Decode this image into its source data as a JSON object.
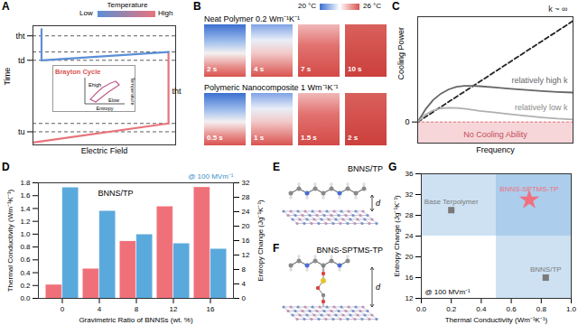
{
  "chart_data": [
    {
      "panel": "A",
      "type": "line",
      "xlabel": "Electric Field",
      "ylabel": "Time",
      "xlim": [
        0,
        1
      ],
      "ylim": [
        0,
        1
      ],
      "yticks": [
        {
          "value": 0.11,
          "label": "tu"
        },
        {
          "value": 0.71,
          "label": "td"
        },
        {
          "value": 0.915,
          "label": "tht"
        }
      ],
      "tick_labels": "y",
      "series": [
        {
          "color": "#e8737b",
          "x": [
            0,
            0.95
          ],
          "values": [
            0.02,
            0.18
          ]
        },
        {
          "color": "#e8737b",
          "x": [
            0.95,
            0.95
          ],
          "values": [
            0.18,
            0.78
          ]
        },
        {
          "color": "#5b8fd6",
          "x": [
            0.95,
            0.06
          ],
          "values": [
            0.78,
            0.71
          ]
        },
        {
          "color": "#5b8fd6",
          "x": [
            0.06,
            0.06
          ],
          "values": [
            0.71,
            0.97
          ]
        }
      ],
      "dashed_lines": [
        0.11,
        0.18,
        0.71,
        0.78,
        0.915
      ],
      "annotations": [
        {
          "text": "tht",
          "x": 0.95,
          "y": 0.45
        }
      ],
      "temperature_bar": {
        "title": "Temperature",
        "low": "Low",
        "high": "High",
        "colors": [
          "#5b8fd6",
          "#e8737b"
        ]
      },
      "inset": {
        "title": "Brayton Cycle",
        "xlabel": "Entropy",
        "ylabel": "Temperature",
        "labels": [
          "Ehigh",
          "Elow"
        ]
      }
    },
    {
      "panel": "C",
      "type": "line",
      "xlabel": "Frequency",
      "ylabel": "Cooling Power",
      "xlim": [
        0,
        10
      ],
      "ylim": [
        -1,
        5
      ],
      "yticks": [
        0
      ],
      "tick_labels": "y",
      "series": [
        {
          "annotation": "k ~ ∞",
          "color": "#222222",
          "line_style": "dashed",
          "x": [
            0,
            10
          ],
          "values": [
            0,
            4.8
          ]
        },
        {
          "annotation": "relatively high k",
          "color": "#666666",
          "line_style": "solid",
          "x": [
            0,
            0.5,
            1,
            1.5,
            2,
            2.5,
            3,
            3.5,
            4,
            5,
            6,
            7,
            8,
            9,
            10
          ],
          "values": [
            0,
            0.6,
            1.05,
            1.35,
            1.55,
            1.67,
            1.72,
            1.72,
            1.7,
            1.64,
            1.58,
            1.52,
            1.47,
            1.43,
            1.4
          ]
        },
        {
          "annotation": "relatively low k",
          "color": "#b0b0b0",
          "line_style": "solid",
          "x": [
            0,
            0.5,
            1,
            1.5,
            2,
            2.5,
            3,
            3.5,
            4,
            5,
            6,
            7,
            8,
            9,
            10
          ],
          "values": [
            0,
            0.35,
            0.55,
            0.65,
            0.68,
            0.67,
            0.63,
            0.58,
            0.53,
            0.45,
            0.37,
            0.29,
            0.22,
            0.16,
            0.12
          ]
        }
      ],
      "shaded_band": {
        "from": -1,
        "to": 0,
        "text": "No Cooling Ability",
        "color": "#f7d6d9"
      }
    },
    {
      "panel": "D",
      "type": "bar",
      "xlabel": "Gravimetric Ratio of BNNSs (wt. %)",
      "ylabel": "Thermal Conductivity (Wm⁻¹K⁻¹)",
      "y2label": "Entropy Change (Jg⁻¹K⁻¹)",
      "categories": [
        "0",
        "4",
        "8",
        "12",
        "16"
      ],
      "ylim": [
        0,
        1.8
      ],
      "yticks": [
        {
          "value": 0,
          "label": "0.0"
        },
        0.2,
        0.4,
        0.6,
        0.8,
        {
          "value": 1,
          "label": "1.0"
        },
        1.2,
        1.4,
        1.6,
        1.8
      ],
      "y2lim": [
        0,
        32
      ],
      "y2ticks": [
        0,
        4,
        8,
        12,
        16,
        20,
        24,
        28,
        32
      ],
      "series": [
        {
          "color": "#f0707a",
          "values": [
            0.2,
            0.45,
            0.88,
            1.42,
            1.72
          ]
        },
        {
          "color": "#5aa9dc",
          "axis": "y2",
          "values": [
            30.5,
            24,
            17.5,
            15,
            13.5
          ]
        }
      ],
      "annotations": [
        "BNNS/TP",
        "@ 100 MVm⁻¹"
      ]
    },
    {
      "panel": "G",
      "type": "scatter",
      "xlabel": "Thermal Conductivity (Wm⁻¹K⁻¹)",
      "ylabel": "Entropy Change (Jg⁻¹K⁻¹)",
      "xlim": [
        0,
        1
      ],
      "ylim": [
        12,
        36
      ],
      "xticks": [
        {
          "value": 0,
          "label": "0.0"
        },
        0.2,
        0.4,
        0.6,
        0.8,
        {
          "value": 1,
          "label": "1.0"
        }
      ],
      "yticks": [
        12,
        16,
        20,
        24,
        28,
        32,
        36
      ],
      "points": [
        {
          "label": "Base Terpolymer",
          "x": 0.2,
          "y": 29,
          "marker": "square",
          "color": "#7a7a7a"
        },
        {
          "label": "BNNS-SPTMS-TP",
          "x": 0.72,
          "y": 31,
          "marker": "star",
          "color": "#f07080"
        },
        {
          "label": "BNNS/TP",
          "x": 0.83,
          "y": 16,
          "marker": "square",
          "color": "#7a7a7a"
        }
      ],
      "shaded": {
        "x_from": 0.5,
        "y_from": 24,
        "color": "#6fa8dc"
      },
      "annotations": [
        "@ 100 MVm⁻¹"
      ]
    }
  ],
  "diagrams": {
    "B": {
      "panel": "B",
      "colorbar": {
        "low": "20 °C",
        "high": "26 °C"
      },
      "rows": [
        {
          "title": "Neat Polymer 0.2 Wm⁻¹K⁻¹",
          "times": [
            "2 s",
            "4 s",
            "7 s",
            "10 s"
          ]
        },
        {
          "title": "Polymeric Nanocomposite 1 Wm⁻¹K⁻¹",
          "times": [
            "0.5 s",
            "1 s",
            "1.5 s",
            "2 s"
          ]
        }
      ]
    },
    "E": {
      "panel": "E",
      "title": "BNNS/TP",
      "distance_label": "d"
    },
    "F": {
      "panel": "F",
      "title": "BNNS-SPTMS-TP",
      "distance_label": "d"
    }
  }
}
